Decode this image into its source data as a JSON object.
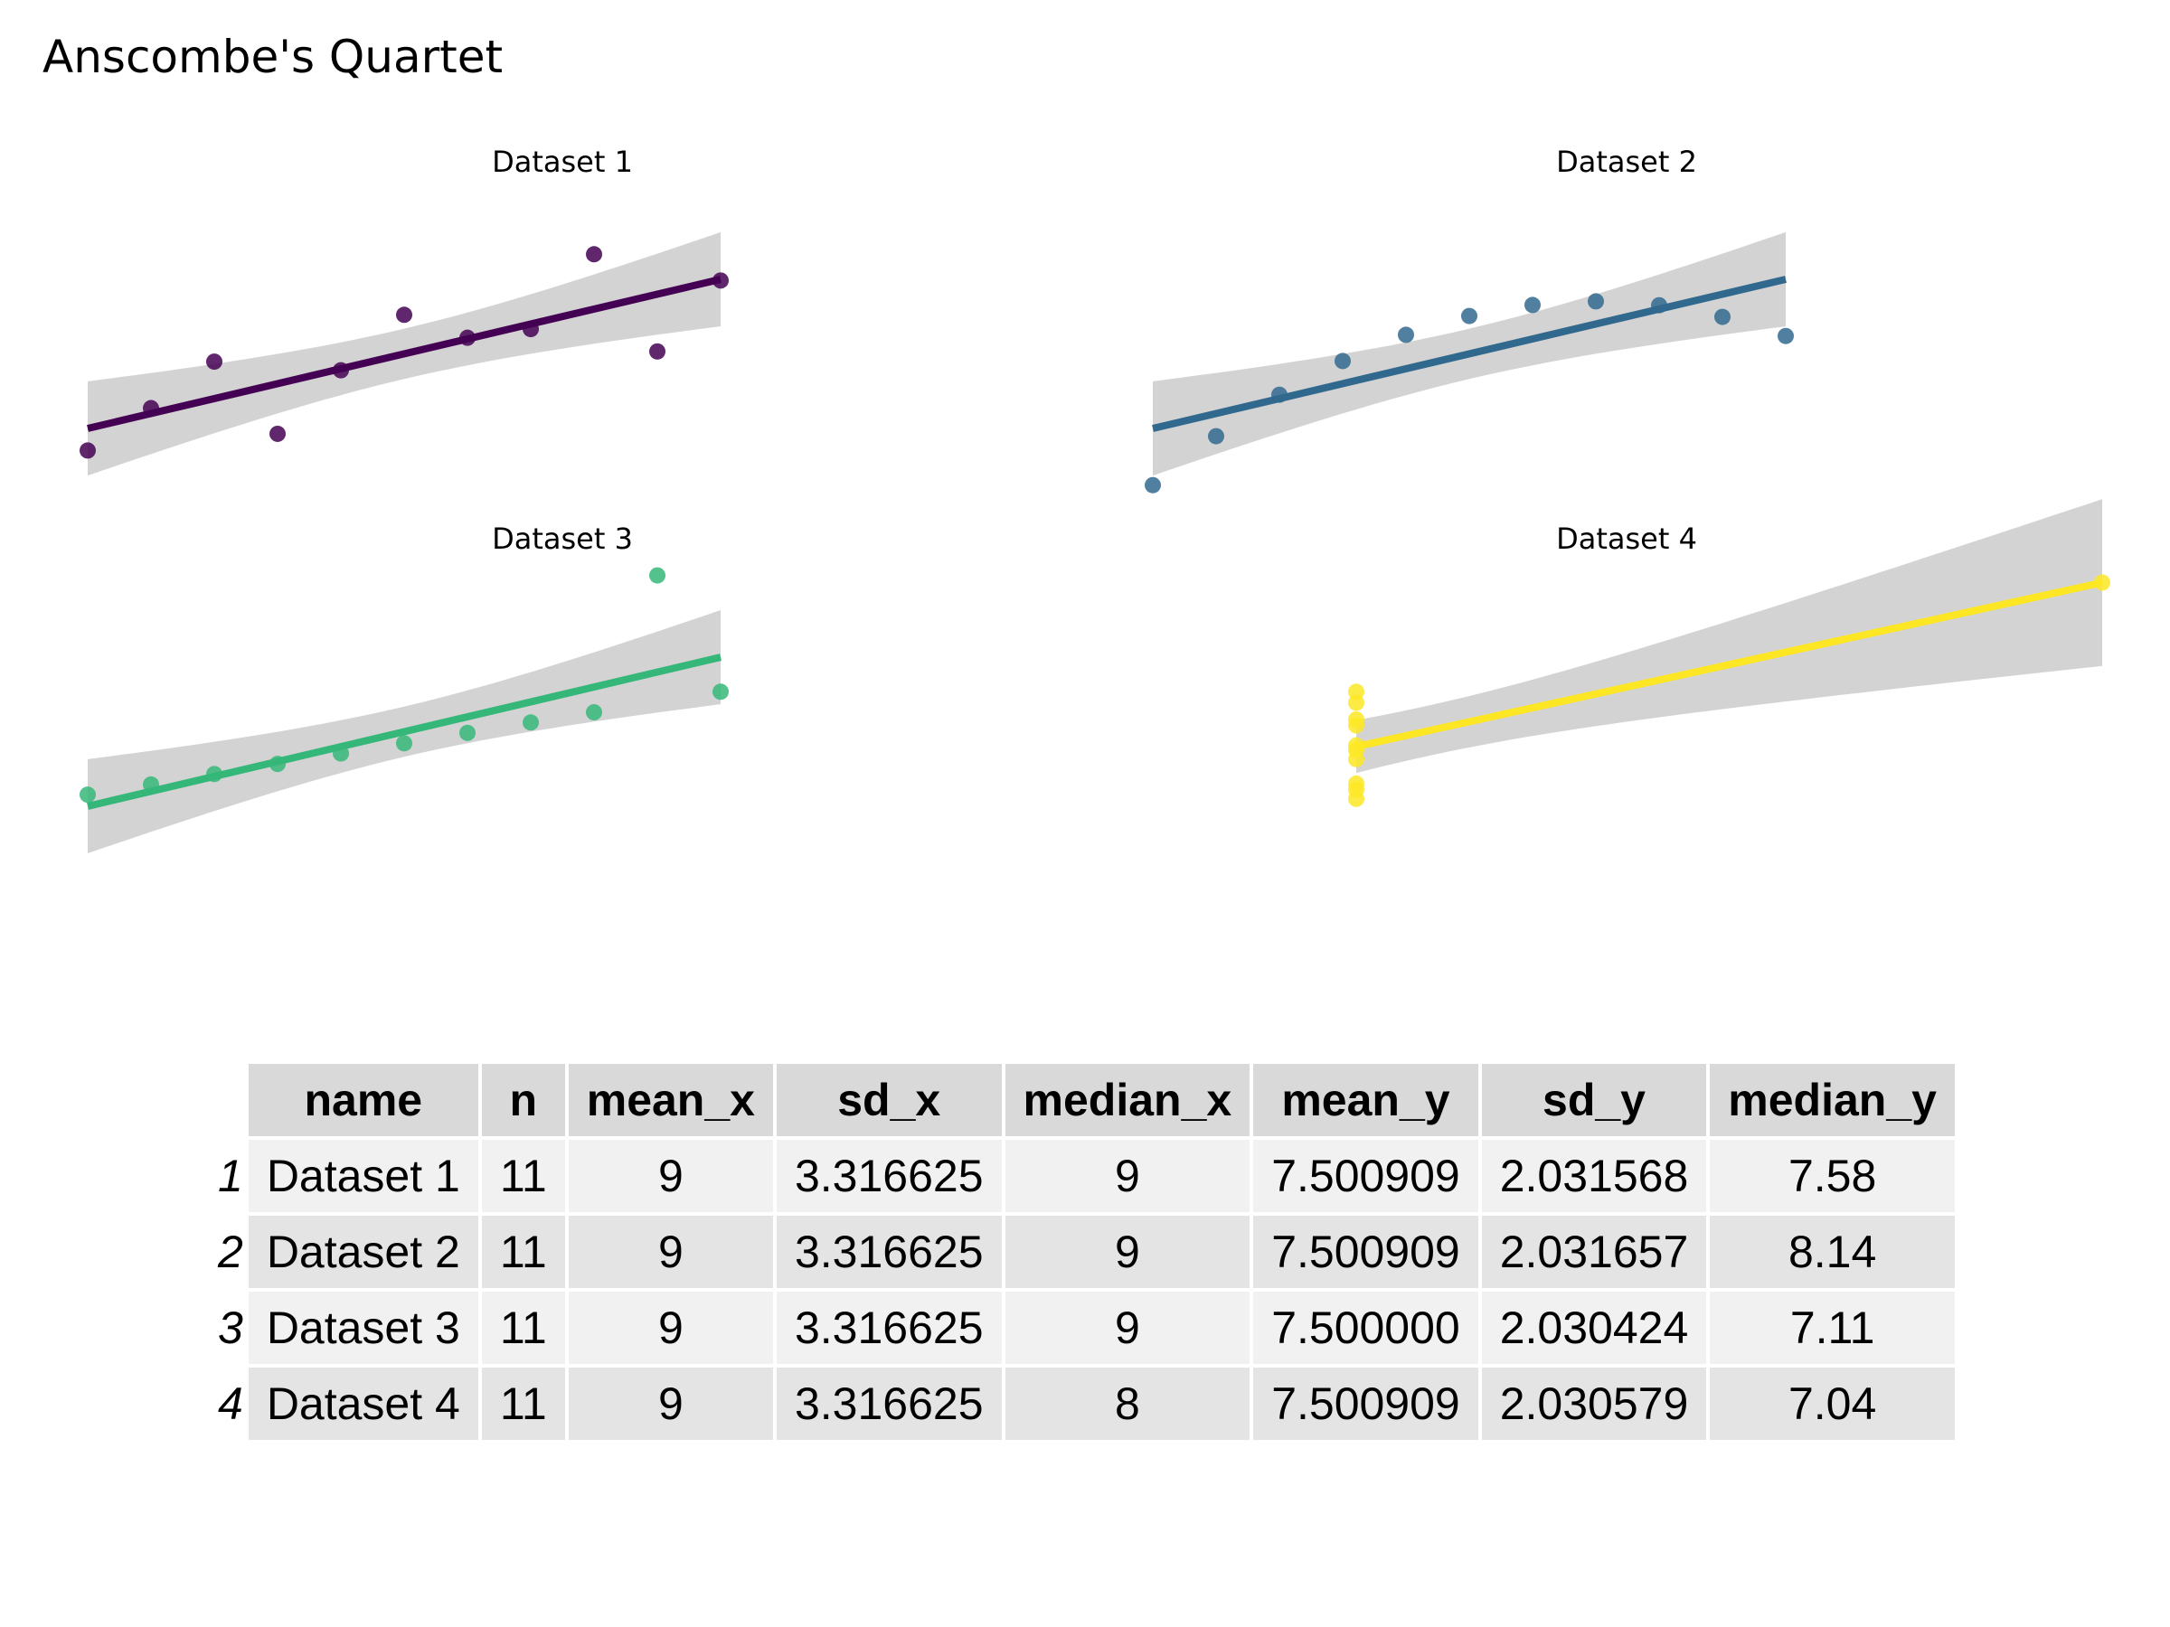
{
  "title": "Anscombe's Quartet",
  "chart_data": {
    "type": "scatter",
    "panels": [
      {
        "title": "Dataset 1",
        "color": "#440154",
        "x": [
          4,
          5,
          6,
          7,
          8,
          9,
          10,
          11,
          12,
          13,
          14
        ],
        "y": [
          4.26,
          5.68,
          7.24,
          4.82,
          6.95,
          8.81,
          8.04,
          8.33,
          10.84,
          7.58,
          9.96
        ],
        "fit": {
          "intercept": 3.0001,
          "slope": 0.5001
        },
        "ylim": [
          3,
          13
        ]
      },
      {
        "title": "Dataset 2",
        "color": "#31688e",
        "x": [
          4,
          5,
          6,
          7,
          8,
          9,
          10,
          11,
          12,
          13,
          14
        ],
        "y": [
          3.1,
          4.74,
          6.13,
          7.26,
          8.14,
          8.77,
          9.14,
          9.26,
          9.13,
          8.74,
          8.1
        ],
        "fit": {
          "intercept": 3.0009,
          "slope": 0.5
        },
        "ylim": [
          3,
          13
        ]
      },
      {
        "title": "Dataset 3",
        "color": "#35b779",
        "x": [
          4,
          5,
          6,
          7,
          8,
          9,
          10,
          11,
          12,
          13,
          14
        ],
        "y": [
          5.39,
          5.73,
          6.08,
          6.42,
          6.77,
          7.11,
          7.46,
          7.81,
          8.15,
          12.74,
          8.84
        ],
        "fit": {
          "intercept": 3.0025,
          "slope": 0.4997
        },
        "ylim": [
          3,
          13
        ]
      },
      {
        "title": "Dataset 4",
        "color": "#fde725",
        "x": [
          8,
          8,
          8,
          8,
          8,
          8,
          8,
          8,
          8,
          8,
          19
        ],
        "y": [
          5.25,
          5.56,
          5.76,
          6.58,
          6.89,
          7.04,
          7.71,
          7.91,
          8.47,
          8.84,
          12.5
        ],
        "fit": {
          "intercept": 3.0017,
          "slope": 0.4999
        },
        "ylim": [
          3,
          13
        ]
      }
    ]
  },
  "table": {
    "columns": [
      "name",
      "n",
      "mean_x",
      "sd_x",
      "median_x",
      "mean_y",
      "sd_y",
      "median_y"
    ],
    "rows": [
      {
        "row_number": "1",
        "cells": [
          "Dataset 1",
          "11",
          "9",
          "3.316625",
          "9",
          "7.500909",
          "2.031568",
          "7.58"
        ]
      },
      {
        "row_number": "2",
        "cells": [
          "Dataset 2",
          "11",
          "9",
          "3.316625",
          "9",
          "7.500909",
          "2.031657",
          "8.14"
        ]
      },
      {
        "row_number": "3",
        "cells": [
          "Dataset 3",
          "11",
          "9",
          "3.316625",
          "9",
          "7.500000",
          "2.030424",
          "7.11"
        ]
      },
      {
        "row_number": "4",
        "cells": [
          "Dataset 4",
          "11",
          "9",
          "3.316625",
          "8",
          "7.500909",
          "2.030579",
          "7.04"
        ]
      }
    ]
  }
}
